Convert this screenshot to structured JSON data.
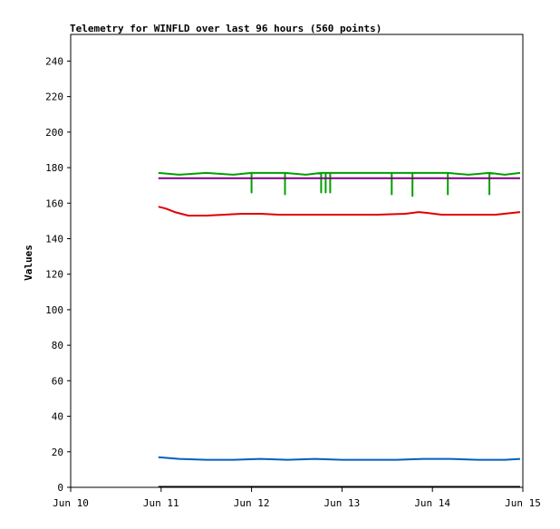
{
  "chart_data": {
    "type": "line",
    "title": "Telemetry for WINFLD over last 96 hours (560 points)",
    "ylabel": "Values",
    "xlabel": "",
    "ylim": [
      0,
      255
    ],
    "yticks": [
      0,
      20,
      40,
      60,
      80,
      100,
      120,
      140,
      160,
      180,
      200,
      220,
      240
    ],
    "xlim": [
      "Jun 10",
      "Jun 15"
    ],
    "xticks": [
      "Jun 10",
      "Jun 11",
      "Jun 12",
      "Jun 13",
      "Jun 14",
      "Jun 15"
    ],
    "grid": false,
    "legend": "none",
    "series": [
      {
        "color": "#00a000",
        "x": [
          0.97,
          1.2,
          1.5,
          1.8,
          2.0,
          2.0,
          2.0,
          2.2,
          2.37,
          2.37,
          2.37,
          2.6,
          2.77,
          2.77,
          2.77,
          2.82,
          2.82,
          2.82,
          2.87,
          2.87,
          2.87,
          3.2,
          3.55,
          3.55,
          3.55,
          3.78,
          3.78,
          3.78,
          4.0,
          4.17,
          4.17,
          4.17,
          4.4,
          4.63,
          4.63,
          4.63,
          4.8,
          4.97
        ],
        "y": [
          177,
          176,
          177,
          176,
          177,
          166,
          177,
          177,
          177,
          165,
          177,
          176,
          177,
          166,
          177,
          177,
          166,
          177,
          177,
          166,
          177,
          177,
          177,
          165,
          177,
          177,
          164,
          177,
          177,
          177,
          165,
          177,
          176,
          177,
          165,
          177,
          176,
          177
        ]
      },
      {
        "color": "#800080",
        "x": [
          0.97,
          4.97
        ],
        "y": [
          174,
          174
        ]
      },
      {
        "color": "#e00000",
        "x": [
          0.97,
          1.05,
          1.15,
          1.3,
          1.5,
          1.7,
          1.9,
          2.1,
          2.3,
          2.6,
          3.0,
          3.4,
          3.7,
          3.85,
          3.95,
          4.1,
          4.4,
          4.7,
          4.97
        ],
        "y": [
          158,
          157,
          155,
          153,
          153,
          153.5,
          154,
          154,
          153.5,
          153.5,
          153.5,
          153.5,
          154,
          155,
          154.5,
          153.5,
          153.5,
          153.5,
          155
        ]
      },
      {
        "color": "#0060c0",
        "x": [
          0.97,
          1.2,
          1.5,
          1.8,
          2.1,
          2.4,
          2.7,
          3.0,
          3.3,
          3.6,
          3.9,
          4.2,
          4.5,
          4.8,
          4.97
        ],
        "y": [
          17,
          16,
          15.5,
          15.5,
          16,
          15.5,
          16,
          15.5,
          15.5,
          15.5,
          16,
          16,
          15.5,
          15.5,
          16
        ]
      }
    ]
  }
}
